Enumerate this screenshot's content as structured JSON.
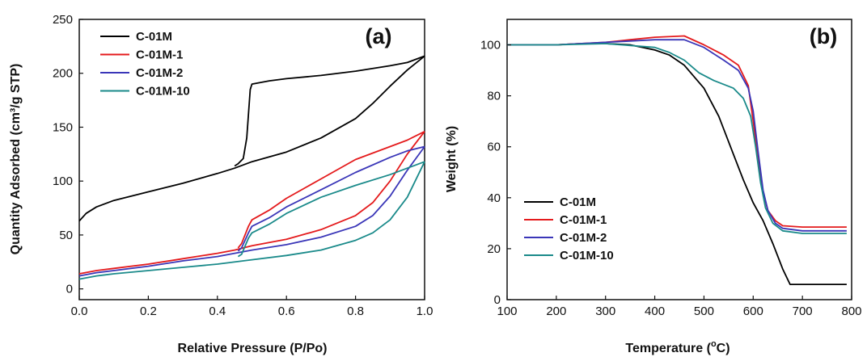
{
  "chart_data": [
    {
      "type": "line",
      "panel_label": "(a)",
      "xlabel": "Relative Pressure (P/Po)",
      "ylabel": "Quantity Adsorbed (cm³/g STP)",
      "xlim": [
        0.0,
        1.0
      ],
      "ylim": [
        -10,
        250
      ],
      "xticks": [
        "0.0",
        "0.2",
        "0.4",
        "0.6",
        "0.8",
        "1.0"
      ],
      "yticks": [
        "0",
        "50",
        "100",
        "150",
        "200",
        "250"
      ],
      "legend_position": "top-left",
      "series": [
        {
          "name": "C-01M",
          "color": "#000000",
          "adsorption": [
            [
              0.0,
              63
            ],
            [
              0.02,
              70
            ],
            [
              0.05,
              76
            ],
            [
              0.1,
              82
            ],
            [
              0.2,
              90
            ],
            [
              0.3,
              98
            ],
            [
              0.4,
              107
            ],
            [
              0.45,
              112
            ],
            [
              0.5,
              118
            ],
            [
              0.6,
              127
            ],
            [
              0.7,
              140
            ],
            [
              0.8,
              158
            ],
            [
              0.85,
              172
            ],
            [
              0.9,
              188
            ],
            [
              0.95,
              203
            ],
            [
              1.0,
              216
            ]
          ],
          "desorption": [
            [
              1.0,
              216
            ],
            [
              0.95,
              210
            ],
            [
              0.9,
              207
            ],
            [
              0.8,
              202
            ],
            [
              0.7,
              198
            ],
            [
              0.6,
              195
            ],
            [
              0.55,
              193
            ],
            [
              0.5,
              190
            ],
            [
              0.495,
              185
            ],
            [
              0.485,
              140
            ],
            [
              0.475,
              121
            ],
            [
              0.46,
              116
            ],
            [
              0.45,
              114
            ]
          ]
        },
        {
          "name": "C-01M-1",
          "color": "#e41a1c",
          "adsorption": [
            [
              0.0,
              14
            ],
            [
              0.05,
              17
            ],
            [
              0.1,
              19
            ],
            [
              0.2,
              23
            ],
            [
              0.3,
              28
            ],
            [
              0.4,
              33
            ],
            [
              0.45,
              36
            ],
            [
              0.5,
              40
            ],
            [
              0.6,
              46
            ],
            [
              0.7,
              55
            ],
            [
              0.8,
              68
            ],
            [
              0.85,
              80
            ],
            [
              0.9,
              100
            ],
            [
              0.95,
              125
            ],
            [
              1.0,
              146
            ]
          ],
          "desorption": [
            [
              1.0,
              146
            ],
            [
              0.95,
              138
            ],
            [
              0.9,
              132
            ],
            [
              0.8,
              120
            ],
            [
              0.7,
              102
            ],
            [
              0.6,
              84
            ],
            [
              0.55,
              73
            ],
            [
              0.5,
              64
            ],
            [
              0.49,
              58
            ],
            [
              0.47,
              42
            ],
            [
              0.46,
              38
            ]
          ]
        },
        {
          "name": "C-01M-2",
          "color": "#3a36b8",
          "adsorption": [
            [
              0.0,
              12
            ],
            [
              0.05,
              15
            ],
            [
              0.1,
              17
            ],
            [
              0.2,
              21
            ],
            [
              0.3,
              26
            ],
            [
              0.4,
              30
            ],
            [
              0.45,
              33
            ],
            [
              0.5,
              36
            ],
            [
              0.6,
              41
            ],
            [
              0.7,
              48
            ],
            [
              0.8,
              58
            ],
            [
              0.85,
              68
            ],
            [
              0.9,
              86
            ],
            [
              0.95,
              110
            ],
            [
              1.0,
              132
            ]
          ],
          "desorption": [
            [
              1.0,
              132
            ],
            [
              0.95,
              128
            ],
            [
              0.9,
              122
            ],
            [
              0.8,
              108
            ],
            [
              0.7,
              92
            ],
            [
              0.6,
              76
            ],
            [
              0.55,
              66
            ],
            [
              0.5,
              58
            ],
            [
              0.49,
              52
            ],
            [
              0.47,
              38
            ],
            [
              0.46,
              35
            ]
          ]
        },
        {
          "name": "C-01M-10",
          "color": "#1a8a8a",
          "adsorption": [
            [
              0.0,
              9
            ],
            [
              0.05,
              12
            ],
            [
              0.1,
              14
            ],
            [
              0.2,
              17
            ],
            [
              0.3,
              20
            ],
            [
              0.4,
              23
            ],
            [
              0.5,
              27
            ],
            [
              0.6,
              31
            ],
            [
              0.7,
              36
            ],
            [
              0.8,
              45
            ],
            [
              0.85,
              52
            ],
            [
              0.9,
              64
            ],
            [
              0.95,
              85
            ],
            [
              1.0,
              118
            ]
          ],
          "desorption": [
            [
              1.0,
              118
            ],
            [
              0.95,
              112
            ],
            [
              0.9,
              106
            ],
            [
              0.8,
              96
            ],
            [
              0.7,
              85
            ],
            [
              0.6,
              70
            ],
            [
              0.55,
              60
            ],
            [
              0.5,
              52
            ],
            [
              0.49,
              47
            ],
            [
              0.47,
              32
            ],
            [
              0.46,
              30
            ]
          ]
        }
      ]
    },
    {
      "type": "line",
      "panel_label": "(b)",
      "xlabel": "Temperature (°C)",
      "xlabel_main": "Temperature (",
      "xlabel_deg": "o",
      "xlabel_unit": "C)",
      "ylabel": "Weight (%)",
      "xlim": [
        100,
        800
      ],
      "ylim": [
        0,
        110
      ],
      "xticks": [
        "100",
        "200",
        "300",
        "400",
        "500",
        "600",
        "700",
        "800"
      ],
      "yticks": [
        "0",
        "20",
        "40",
        "60",
        "80",
        "100"
      ],
      "legend_position": "bottom-left",
      "series": [
        {
          "name": "C-01M",
          "color": "#000000",
          "points": [
            [
              100,
              100
            ],
            [
              150,
              100
            ],
            [
              200,
              100
            ],
            [
              250,
              100.5
            ],
            [
              300,
              100.5
            ],
            [
              350,
              100
            ],
            [
              400,
              98
            ],
            [
              430,
              96
            ],
            [
              460,
              92
            ],
            [
              500,
              83
            ],
            [
              530,
              72
            ],
            [
              560,
              57
            ],
            [
              580,
              47
            ],
            [
              600,
              38
            ],
            [
              620,
              31
            ],
            [
              640,
              22
            ],
            [
              660,
              12
            ],
            [
              675,
              6
            ],
            [
              690,
              6
            ],
            [
              720,
              6
            ],
            [
              750,
              6
            ],
            [
              790,
              6
            ]
          ]
        },
        {
          "name": "C-01M-1",
          "color": "#e41a1c",
          "points": [
            [
              100,
              100
            ],
            [
              200,
              100
            ],
            [
              300,
              101
            ],
            [
              350,
              102
            ],
            [
              400,
              103
            ],
            [
              460,
              103.5
            ],
            [
              500,
              100
            ],
            [
              540,
              96
            ],
            [
              570,
              92
            ],
            [
              590,
              84
            ],
            [
              600,
              70
            ],
            [
              610,
              55
            ],
            [
              620,
              42
            ],
            [
              630,
              35
            ],
            [
              645,
              31
            ],
            [
              660,
              29
            ],
            [
              700,
              28.5
            ],
            [
              750,
              28.5
            ],
            [
              790,
              28.5
            ]
          ]
        },
        {
          "name": "C-01M-2",
          "color": "#3a36b8",
          "points": [
            [
              100,
              100
            ],
            [
              200,
              100
            ],
            [
              300,
              101
            ],
            [
              350,
              101.5
            ],
            [
              400,
              102
            ],
            [
              460,
              102
            ],
            [
              500,
              99
            ],
            [
              540,
              94
            ],
            [
              570,
              90
            ],
            [
              590,
              83
            ],
            [
              600,
              74
            ],
            [
              610,
              58
            ],
            [
              620,
              43
            ],
            [
              630,
              35
            ],
            [
              645,
              30
            ],
            [
              660,
              28
            ],
            [
              700,
              27
            ],
            [
              750,
              27
            ],
            [
              790,
              27
            ]
          ]
        },
        {
          "name": "C-01M-10",
          "color": "#1a8a8a",
          "points": [
            [
              100,
              100
            ],
            [
              200,
              100
            ],
            [
              300,
              100.5
            ],
            [
              400,
              99
            ],
            [
              430,
              97
            ],
            [
              460,
              94
            ],
            [
              490,
              89
            ],
            [
              520,
              86
            ],
            [
              560,
              83
            ],
            [
              580,
              79
            ],
            [
              595,
              72
            ],
            [
              605,
              60
            ],
            [
              615,
              46
            ],
            [
              625,
              36
            ],
            [
              640,
              30
            ],
            [
              660,
              27
            ],
            [
              700,
              26
            ],
            [
              750,
              26
            ],
            [
              790,
              26
            ]
          ]
        }
      ]
    }
  ]
}
